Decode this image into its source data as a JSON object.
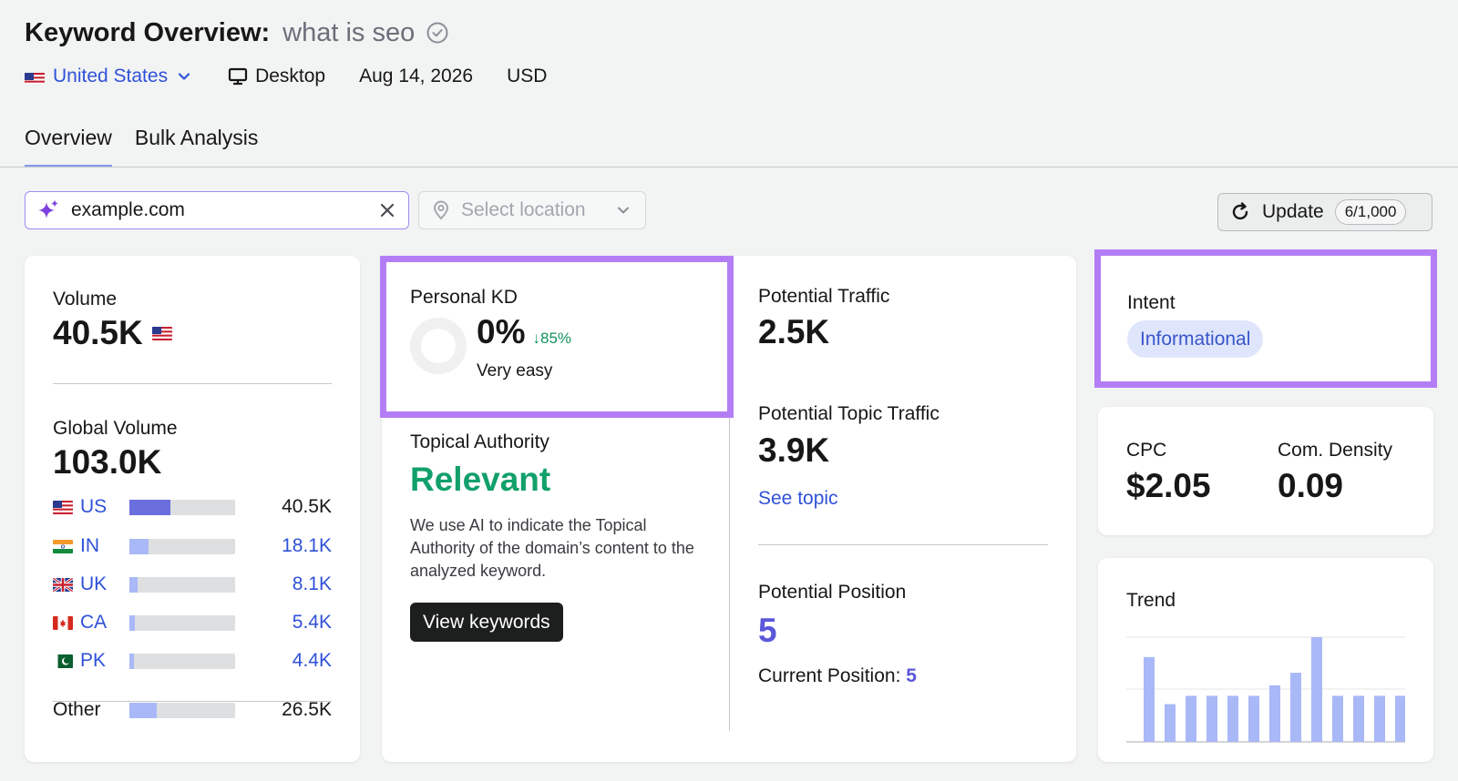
{
  "header": {
    "title": "Keyword Overview:",
    "keyword": "what is seo",
    "country": "United States",
    "device": "Desktop",
    "date": "Aug 14, 2026",
    "currency": "USD"
  },
  "tabs": [
    {
      "label": "Overview",
      "active": true
    },
    {
      "label": "Bulk Analysis",
      "active": false
    }
  ],
  "toolbar": {
    "domain_value": "example.com",
    "location_placeholder": "Select location",
    "update_label": "Update",
    "update_quota": "6/1,000"
  },
  "volume": {
    "label": "Volume",
    "value": "40.5K",
    "global_label": "Global Volume",
    "global_value": "103.0K",
    "countries": [
      {
        "code": "US",
        "value": "40.5K",
        "share": 0.39
      },
      {
        "code": "IN",
        "value": "18.1K",
        "share": 0.18
      },
      {
        "code": "UK",
        "value": "8.1K",
        "share": 0.08
      },
      {
        "code": "CA",
        "value": "5.4K",
        "share": 0.05
      },
      {
        "code": "PK",
        "value": "4.4K",
        "share": 0.04
      }
    ],
    "other": {
      "label": "Other",
      "value": "26.5K",
      "share": 0.26
    }
  },
  "personal_kd": {
    "label": "Personal KD",
    "value": "0%",
    "trend": "↓85%",
    "difficulty": "Very easy"
  },
  "topical_authority": {
    "label": "Topical Authority",
    "value": "Relevant",
    "description": "We use AI to indicate the Topical Authority of the domain’s content to the analyzed keyword.",
    "button_label": "View keywords"
  },
  "potential": {
    "traffic_label": "Potential Traffic",
    "traffic_value": "2.5K",
    "topic_traffic_label": "Potential Topic Traffic",
    "topic_traffic_value": "3.9K",
    "see_topic": "See topic",
    "position_label": "Potential Position",
    "position_value": "5",
    "current_position_label": "Current Position:",
    "current_position_value": "5"
  },
  "intent": {
    "label": "Intent",
    "value": "Informational"
  },
  "cpc": {
    "label": "CPC",
    "value": "$2.05",
    "density_label": "Com. Density",
    "density_value": "0.09"
  },
  "trend": {
    "label": "Trend",
    "values": [
      0.81,
      0.36,
      0.44,
      0.44,
      0.44,
      0.44,
      0.54,
      0.66,
      1.0,
      0.44,
      0.44,
      0.44,
      0.44
    ]
  },
  "colors": {
    "accent_highlight": "#b37ef5",
    "link_blue": "#2f52d9",
    "success_green": "#12a06a",
    "bar_primary": "#6b6fdd",
    "bar_light": "#a9b8f7"
  }
}
